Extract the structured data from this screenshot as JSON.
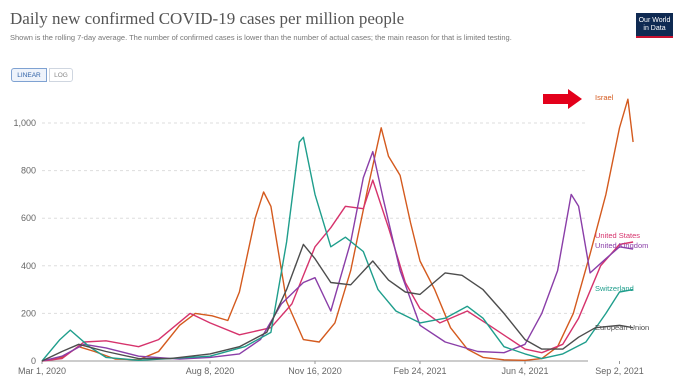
{
  "header": {
    "title": "Daily new confirmed COVID-19 cases per million people",
    "subtitle": "Shown is the rolling 7-day average. The number of confirmed cases is lower than the number of actual cases; the main reason for that is limited testing.",
    "logo": [
      "Our World",
      "in Data"
    ]
  },
  "controls": {
    "linear_label": "LINEAR",
    "log_label": "LOG",
    "active": "linear"
  },
  "colors": {
    "Israel": "#d45a1e",
    "United States": "#d6336c",
    "United Kingdom": "#8a3ea8",
    "Switzerland": "#1f9e8c",
    "European Union": "#4d4d4d",
    "arrow": "#e3001b"
  },
  "chart_data": {
    "type": "line",
    "title": "Daily new confirmed COVID-19 cases per million people",
    "xlabel": "",
    "ylabel": "",
    "ylim": [
      0,
      1100
    ],
    "y_ticks": [
      0,
      200,
      400,
      600,
      800,
      1000
    ],
    "y_tick_labels": [
      "0",
      "200",
      "400",
      "600",
      "800",
      "1,000"
    ],
    "x_ticks": [
      "2020-03-01",
      "2020-08-08",
      "2020-11-16",
      "2021-02-24",
      "2021-06-04",
      "2021-09-02"
    ],
    "x_tick_labels": [
      "Mar 1, 2020",
      "Aug 8, 2020",
      "Nov 16, 2020",
      "Feb 24, 2021",
      "Jun 4, 2021",
      "Sep 2, 2021"
    ],
    "x_range": [
      "2020-03-01",
      "2021-09-22"
    ],
    "grid": "horizontal dashed",
    "annotation": "red arrow pointing to Israel",
    "series": [
      {
        "name": "Israel",
        "points": [
          [
            "2020-03-01",
            0
          ],
          [
            "2020-03-20",
            15
          ],
          [
            "2020-04-05",
            60
          ],
          [
            "2020-04-20",
            40
          ],
          [
            "2020-05-10",
            8
          ],
          [
            "2020-06-01",
            5
          ],
          [
            "2020-06-20",
            40
          ],
          [
            "2020-07-10",
            150
          ],
          [
            "2020-07-25",
            200
          ],
          [
            "2020-08-10",
            190
          ],
          [
            "2020-08-25",
            170
          ],
          [
            "2020-09-05",
            290
          ],
          [
            "2020-09-20",
            600
          ],
          [
            "2020-09-28",
            710
          ],
          [
            "2020-10-05",
            650
          ],
          [
            "2020-10-20",
            250
          ],
          [
            "2020-11-05",
            90
          ],
          [
            "2020-11-20",
            80
          ],
          [
            "2020-12-05",
            160
          ],
          [
            "2020-12-20",
            380
          ],
          [
            "2021-01-05",
            720
          ],
          [
            "2021-01-18",
            980
          ],
          [
            "2021-01-25",
            860
          ],
          [
            "2021-02-05",
            780
          ],
          [
            "2021-02-15",
            580
          ],
          [
            "2021-02-24",
            420
          ],
          [
            "2021-03-10",
            300
          ],
          [
            "2021-03-25",
            140
          ],
          [
            "2021-04-10",
            50
          ],
          [
            "2021-04-25",
            15
          ],
          [
            "2021-05-15",
            5
          ],
          [
            "2021-06-04",
            3
          ],
          [
            "2021-06-20",
            10
          ],
          [
            "2021-07-05",
            60
          ],
          [
            "2021-07-20",
            200
          ],
          [
            "2021-08-05",
            450
          ],
          [
            "2021-08-20",
            700
          ],
          [
            "2021-09-02",
            980
          ],
          [
            "2021-09-10",
            1100
          ],
          [
            "2021-09-15",
            920
          ]
        ]
      },
      {
        "name": "United States",
        "points": [
          [
            "2020-03-01",
            0
          ],
          [
            "2020-03-20",
            10
          ],
          [
            "2020-04-10",
            80
          ],
          [
            "2020-05-01",
            85
          ],
          [
            "2020-06-01",
            60
          ],
          [
            "2020-06-20",
            90
          ],
          [
            "2020-07-20",
            200
          ],
          [
            "2020-08-08",
            160
          ],
          [
            "2020-09-05",
            110
          ],
          [
            "2020-10-05",
            140
          ],
          [
            "2020-10-25",
            240
          ],
          [
            "2020-11-16",
            480
          ],
          [
            "2020-12-01",
            560
          ],
          [
            "2020-12-15",
            650
          ],
          [
            "2021-01-01",
            640
          ],
          [
            "2021-01-10",
            760
          ],
          [
            "2021-01-25",
            560
          ],
          [
            "2021-02-10",
            330
          ],
          [
            "2021-02-24",
            220
          ],
          [
            "2021-03-15",
            160
          ],
          [
            "2021-04-10",
            210
          ],
          [
            "2021-05-01",
            150
          ],
          [
            "2021-06-04",
            50
          ],
          [
            "2021-06-20",
            35
          ],
          [
            "2021-07-10",
            70
          ],
          [
            "2021-07-25",
            180
          ],
          [
            "2021-08-15",
            400
          ],
          [
            "2021-09-02",
            490
          ],
          [
            "2021-09-15",
            500
          ]
        ]
      },
      {
        "name": "United Kingdom",
        "points": [
          [
            "2020-03-01",
            0
          ],
          [
            "2020-03-20",
            20
          ],
          [
            "2020-04-10",
            70
          ],
          [
            "2020-05-01",
            55
          ],
          [
            "2020-06-01",
            20
          ],
          [
            "2020-07-10",
            8
          ],
          [
            "2020-08-08",
            15
          ],
          [
            "2020-09-05",
            30
          ],
          [
            "2020-09-25",
            90
          ],
          [
            "2020-10-15",
            240
          ],
          [
            "2020-11-05",
            330
          ],
          [
            "2020-11-16",
            350
          ],
          [
            "2020-12-01",
            210
          ],
          [
            "2020-12-20",
            500
          ],
          [
            "2021-01-01",
            770
          ],
          [
            "2021-01-10",
            880
          ],
          [
            "2021-01-20",
            680
          ],
          [
            "2021-02-05",
            380
          ],
          [
            "2021-02-24",
            150
          ],
          [
            "2021-03-20",
            80
          ],
          [
            "2021-04-20",
            40
          ],
          [
            "2021-05-15",
            35
          ],
          [
            "2021-06-04",
            70
          ],
          [
            "2021-06-20",
            200
          ],
          [
            "2021-07-05",
            380
          ],
          [
            "2021-07-18",
            700
          ],
          [
            "2021-07-25",
            650
          ],
          [
            "2021-08-05",
            370
          ],
          [
            "2021-08-20",
            430
          ],
          [
            "2021-09-02",
            480
          ],
          [
            "2021-09-15",
            470
          ]
        ]
      },
      {
        "name": "Switzerland",
        "points": [
          [
            "2020-03-01",
            0
          ],
          [
            "2020-03-18",
            90
          ],
          [
            "2020-03-28",
            130
          ],
          [
            "2020-04-15",
            60
          ],
          [
            "2020-05-01",
            15
          ],
          [
            "2020-06-01",
            3
          ],
          [
            "2020-07-01",
            10
          ],
          [
            "2020-08-08",
            20
          ],
          [
            "2020-09-10",
            60
          ],
          [
            "2020-10-05",
            120
          ],
          [
            "2020-10-20",
            500
          ],
          [
            "2020-11-01",
            920
          ],
          [
            "2020-11-05",
            940
          ],
          [
            "2020-11-16",
            700
          ],
          [
            "2020-12-01",
            480
          ],
          [
            "2020-12-15",
            520
          ],
          [
            "2021-01-01",
            460
          ],
          [
            "2021-01-15",
            300
          ],
          [
            "2021-02-01",
            210
          ],
          [
            "2021-02-24",
            160
          ],
          [
            "2021-03-20",
            180
          ],
          [
            "2021-04-10",
            230
          ],
          [
            "2021-04-25",
            180
          ],
          [
            "2021-05-15",
            60
          ],
          [
            "2021-06-04",
            30
          ],
          [
            "2021-06-20",
            10
          ],
          [
            "2021-07-10",
            30
          ],
          [
            "2021-08-01",
            80
          ],
          [
            "2021-08-20",
            200
          ],
          [
            "2021-09-02",
            290
          ],
          [
            "2021-09-15",
            300
          ]
        ]
      },
      {
        "name": "European Union",
        "points": [
          [
            "2020-03-01",
            0
          ],
          [
            "2020-03-20",
            40
          ],
          [
            "2020-04-05",
            70
          ],
          [
            "2020-05-01",
            40
          ],
          [
            "2020-06-01",
            10
          ],
          [
            "2020-07-01",
            10
          ],
          [
            "2020-08-08",
            30
          ],
          [
            "2020-09-05",
            60
          ],
          [
            "2020-10-01",
            120
          ],
          [
            "2020-10-20",
            300
          ],
          [
            "2020-11-05",
            490
          ],
          [
            "2020-11-16",
            430
          ],
          [
            "2020-12-01",
            330
          ],
          [
            "2020-12-20",
            320
          ],
          [
            "2021-01-10",
            420
          ],
          [
            "2021-01-25",
            340
          ],
          [
            "2021-02-10",
            290
          ],
          [
            "2021-02-24",
            280
          ],
          [
            "2021-03-20",
            370
          ],
          [
            "2021-04-05",
            360
          ],
          [
            "2021-04-25",
            300
          ],
          [
            "2021-05-15",
            200
          ],
          [
            "2021-06-04",
            90
          ],
          [
            "2021-06-20",
            50
          ],
          [
            "2021-07-10",
            50
          ],
          [
            "2021-07-25",
            100
          ],
          [
            "2021-08-10",
            140
          ],
          [
            "2021-09-02",
            150
          ],
          [
            "2021-09-15",
            140
          ]
        ]
      }
    ],
    "series_labels": [
      "Israel",
      "United States",
      "United Kingdom",
      "Switzerland",
      "European Union"
    ]
  }
}
